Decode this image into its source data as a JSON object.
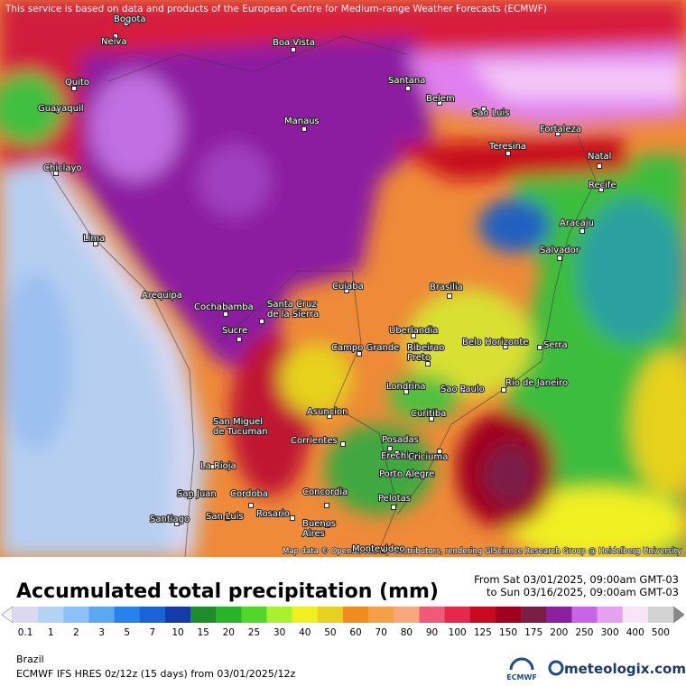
{
  "notice": "This service is based on data and products of the European Centre for Medium-range Weather Forecasts (ECMWF)",
  "attribution": "Map data © OpenStreetMap contributors, rendering GIScience Research Group @ Heidelberg University",
  "title": "Accumulated total precipitation (mm)",
  "period": {
    "from": "From Sat 03/01/2025, 09:00am GMT-03",
    "to": "to Sun 03/16/2025, 09:00am GMT-03"
  },
  "legend": {
    "levels": [
      0.1,
      1,
      2,
      3,
      5,
      7,
      10,
      15,
      20,
      25,
      30,
      40,
      50,
      60,
      70,
      80,
      90,
      100,
      125,
      150,
      175,
      200,
      250,
      300,
      400,
      500
    ],
    "colors": [
      "#dcd8f0",
      "#b4d2f4",
      "#8cc0f8",
      "#5aa8f0",
      "#2882ec",
      "#1a62d8",
      "#143ca8",
      "#1e8c2a",
      "#28b428",
      "#50d828",
      "#a8f030",
      "#f0f020",
      "#e6d21e",
      "#f08c1e",
      "#f5a046",
      "#f5a87a",
      "#f05a78",
      "#e6284b",
      "#c80a1e",
      "#a0001e",
      "#7a1e46",
      "#8c1ea0",
      "#c864e6",
      "#e6a0f0",
      "#f8e6f8",
      "#d2d2d2"
    ]
  },
  "footer": {
    "region": "Brazil",
    "model": "ECMWF IFS HRES 0z/12z (15 days) from 03/01/2025/12z",
    "ecmwf_logo": "ECMWF",
    "brand": "meteologix.com"
  },
  "cities": [
    {
      "name": [
        "Bogota"
      ]
    },
    {
      "name": [
        "Neiva"
      ]
    },
    {
      "name": [
        "Boa Vista"
      ]
    },
    {
      "name": [
        "Quito"
      ]
    },
    {
      "name": [
        "Guayaquil"
      ]
    },
    {
      "name": [
        "Santana"
      ]
    },
    {
      "name": [
        "Belem"
      ]
    },
    {
      "name": [
        "Sao Luis"
      ]
    },
    {
      "name": [
        "Manaus"
      ]
    },
    {
      "name": [
        "Fortaleza"
      ]
    },
    {
      "name": [
        "Teresina"
      ]
    },
    {
      "name": [
        "Chiclayo"
      ]
    },
    {
      "name": [
        "Natal"
      ]
    },
    {
      "name": [
        "Recife"
      ]
    },
    {
      "name": [
        "Aracaju"
      ]
    },
    {
      "name": [
        "Lima"
      ]
    },
    {
      "name": [
        "Salvador"
      ]
    },
    {
      "name": [
        "Arequipa"
      ]
    },
    {
      "name": [
        "Cuiaba"
      ]
    },
    {
      "name": [
        "Brasilia"
      ]
    },
    {
      "name": [
        "Cochabamba"
      ]
    },
    {
      "name": [
        "Santa Cruz",
        "de la Sierra"
      ]
    },
    {
      "name": [
        "Sucre"
      ]
    },
    {
      "name": [
        "Uberlandia"
      ]
    },
    {
      "name": [
        "Belo Horizonte"
      ]
    },
    {
      "name": [
        "Campo Grande"
      ]
    },
    {
      "name": [
        "Ribeirao",
        "Preto"
      ]
    },
    {
      "name": [
        "Serra"
      ]
    },
    {
      "name": [
        "Rio de Janeiro"
      ]
    },
    {
      "name": [
        "Londrina"
      ]
    },
    {
      "name": [
        "Sao Paulo"
      ]
    },
    {
      "name": [
        "Asuncion"
      ]
    },
    {
      "name": [
        "San Miguel",
        "de Tucuman"
      ]
    },
    {
      "name": [
        "Curitiba"
      ]
    },
    {
      "name": [
        "Corrientes"
      ]
    },
    {
      "name": [
        "Posadas"
      ]
    },
    {
      "name": [
        "Erechim"
      ]
    },
    {
      "name": [
        "Criciuma"
      ]
    },
    {
      "name": [
        "La Rioja"
      ]
    },
    {
      "name": [
        "Porto Alegre"
      ]
    },
    {
      "name": [
        "San Juan"
      ]
    },
    {
      "name": [
        "Cordoba"
      ]
    },
    {
      "name": [
        "Concordia"
      ]
    },
    {
      "name": [
        "Pelotas"
      ]
    },
    {
      "name": [
        "Rosario"
      ]
    },
    {
      "name": [
        "Santiago"
      ]
    },
    {
      "name": [
        "San Luis"
      ]
    },
    {
      "name": [
        "Buenos",
        "Aires"
      ]
    },
    {
      "name": [
        "Montevideo"
      ]
    }
  ]
}
